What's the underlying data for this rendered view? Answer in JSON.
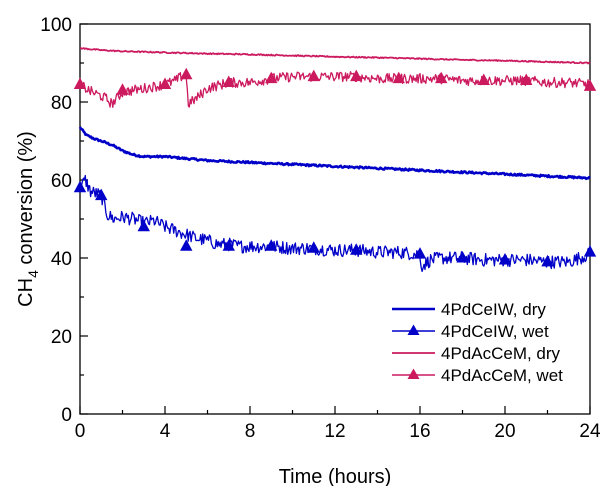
{
  "chart_data": {
    "type": "line",
    "xlabel": "Time (hours)",
    "ylabel_main": "CH",
    "ylabel_sub": "4",
    "ylabel_rest": " conversion (%)",
    "xlim": [
      0,
      24
    ],
    "ylim": [
      0,
      100
    ],
    "x_ticks": [
      0,
      4,
      8,
      12,
      16,
      20,
      24
    ],
    "y_ticks": [
      0,
      20,
      40,
      60,
      80,
      100
    ],
    "x_tick_labels": [
      "0",
      "4",
      "8",
      "12",
      "16",
      "20",
      "24"
    ],
    "y_tick_labels": [
      "0",
      "20",
      "40",
      "60",
      "80",
      "100"
    ],
    "grid": false,
    "legend_position": "bottom-right",
    "series": [
      {
        "name": "4PdCeIW, dry",
        "color": "#0000c8",
        "marker": "none",
        "x": [
          0,
          0.3,
          0.7,
          1.0,
          1.5,
          2.0,
          2.5,
          3.0,
          4.0,
          5.0,
          6.0,
          8.0,
          10.0,
          12.0,
          14.0,
          16.0,
          18.0,
          20.0,
          22.0,
          24.0
        ],
        "y": [
          73.5,
          71.5,
          70.5,
          70.0,
          69.0,
          67.5,
          66.5,
          66.0,
          66.0,
          65.5,
          65.0,
          64.5,
          64.0,
          63.5,
          63.0,
          62.5,
          62.0,
          61.5,
          61.0,
          60.5
        ]
      },
      {
        "name": "4PdCeIW, wet",
        "color": "#0000c8",
        "marker": "triangle",
        "x": [
          0,
          0.25,
          0.5,
          0.8,
          1.0,
          1.3,
          1.6,
          2.0,
          2.5,
          3.0,
          3.5,
          4.0,
          4.5,
          5.0,
          5.5,
          6.0,
          6.5,
          7.0,
          7.5,
          8.0,
          9.0,
          10.0,
          11.0,
          12.0,
          13.0,
          14.0,
          15.0,
          15.9,
          16.1,
          16.5,
          17.0,
          18.0,
          19.0,
          20.0,
          21.0,
          22.0,
          23.0,
          24.0
        ],
        "y": [
          58.0,
          60.0,
          57.0,
          56.5,
          56.0,
          51.0,
          50.0,
          50.5,
          50.0,
          49.0,
          49.5,
          48.0,
          47.0,
          46.0,
          45.0,
          44.5,
          43.5,
          43.5,
          43.0,
          43.0,
          43.0,
          42.5,
          42.5,
          42.0,
          42.0,
          41.5,
          41.5,
          41.0,
          38.0,
          39.5,
          40.0,
          40.0,
          39.5,
          39.5,
          39.5,
          39.0,
          39.0,
          41.0
        ],
        "marker_x": [
          0,
          1.0,
          3.0,
          5.0,
          7.0,
          9.0,
          11.0,
          13.0,
          16.0,
          18.0,
          20.0,
          22.0,
          24.0
        ],
        "marker_y": [
          58.0,
          56.0,
          48.0,
          43.0,
          43.0,
          43.0,
          42.5,
          42.0,
          41.0,
          40.0,
          39.5,
          39.0,
          41.5
        ]
      },
      {
        "name": "4PdAcCeM, dry",
        "color": "#cc1a5e",
        "marker": "none",
        "x": [
          0,
          1.0,
          2.0,
          4.0,
          6.0,
          8.0,
          10.0,
          12.0,
          14.0,
          16.0,
          18.0,
          20.0,
          22.0,
          24.0
        ],
        "y": [
          93.8,
          93.3,
          93.0,
          92.7,
          92.4,
          92.2,
          91.9,
          91.6,
          91.4,
          91.1,
          90.8,
          90.6,
          90.3,
          90.0
        ]
      },
      {
        "name": "4PdAcCeM, wet",
        "color": "#cc1a5e",
        "marker": "triangle",
        "x": [
          0,
          0.4,
          0.8,
          1.2,
          1.5,
          2.0,
          2.5,
          3.0,
          3.5,
          4.0,
          4.5,
          4.9,
          5.0,
          5.1,
          5.5,
          6.0,
          7.0,
          8.0,
          9.0,
          10.0,
          11.0,
          12.0,
          13.0,
          14.0,
          15.0,
          16.0,
          17.0,
          18.0,
          19.0,
          20.0,
          21.0,
          22.0,
          23.0,
          24.0
        ],
        "y": [
          84.5,
          83.0,
          82.0,
          81.0,
          79.5,
          82.5,
          83.0,
          83.5,
          84.0,
          84.5,
          85.5,
          87.0,
          86.0,
          79.5,
          81.0,
          83.5,
          85.0,
          85.0,
          86.0,
          86.5,
          86.5,
          86.5,
          86.5,
          86.0,
          86.0,
          86.0,
          86.0,
          85.5,
          85.5,
          85.5,
          85.5,
          85.0,
          85.0,
          84.5
        ],
        "marker_x": [
          0,
          2.0,
          4.0,
          5.0,
          7.0,
          9.0,
          11.0,
          13.0,
          15.0,
          17.0,
          19.0,
          21.0,
          24.0
        ],
        "marker_y": [
          84.5,
          83.0,
          84.5,
          87.0,
          85.0,
          86.0,
          86.5,
          86.5,
          86.0,
          86.0,
          85.5,
          85.5,
          84.0
        ]
      }
    ]
  }
}
